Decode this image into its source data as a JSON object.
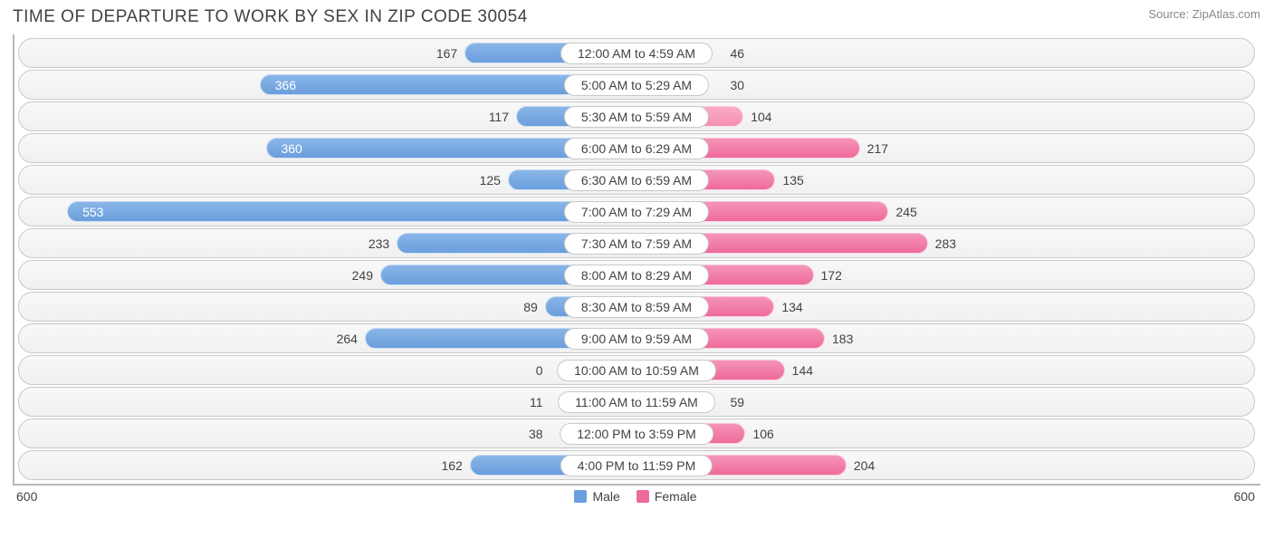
{
  "title": "TIME OF DEPARTURE TO WORK BY SEX IN ZIP CODE 30054",
  "source_label": "Source: ",
  "source_site": "ZipAtlas.com",
  "chart": {
    "type": "diverging-bar",
    "axis_max": 600,
    "axis_left_label": "600",
    "axis_right_label": "600",
    "male_color": "#6a9edc",
    "female_color": "#ee6a9c",
    "male_light": "#f58fb4",
    "track_border": "#c9c9c9",
    "background_color": "#ffffff",
    "label_fontsize": 14,
    "title_fontsize": 19,
    "inside_threshold": 320,
    "legend": {
      "male_label": "Male",
      "female_label": "Female"
    },
    "rows": [
      {
        "category": "12:00 AM to 4:59 AM",
        "male": 167,
        "female": 46,
        "female_light": true
      },
      {
        "category": "5:00 AM to 5:29 AM",
        "male": 366,
        "female": 30,
        "female_light": true
      },
      {
        "category": "5:30 AM to 5:59 AM",
        "male": 117,
        "female": 104,
        "female_light": true
      },
      {
        "category": "6:00 AM to 6:29 AM",
        "male": 360,
        "female": 217,
        "female_light": false
      },
      {
        "category": "6:30 AM to 6:59 AM",
        "male": 125,
        "female": 135,
        "female_light": false
      },
      {
        "category": "7:00 AM to 7:29 AM",
        "male": 553,
        "female": 245,
        "female_light": false
      },
      {
        "category": "7:30 AM to 7:59 AM",
        "male": 233,
        "female": 283,
        "female_light": false
      },
      {
        "category": "8:00 AM to 8:29 AM",
        "male": 249,
        "female": 172,
        "female_light": false
      },
      {
        "category": "8:30 AM to 8:59 AM",
        "male": 89,
        "female": 134,
        "female_light": false
      },
      {
        "category": "9:00 AM to 9:59 AM",
        "male": 264,
        "female": 183,
        "female_light": false
      },
      {
        "category": "10:00 AM to 10:59 AM",
        "male": 0,
        "female": 144,
        "female_light": false
      },
      {
        "category": "11:00 AM to 11:59 AM",
        "male": 11,
        "female": 59,
        "female_light": true
      },
      {
        "category": "12:00 PM to 3:59 PM",
        "male": 38,
        "female": 106,
        "female_light": false
      },
      {
        "category": "4:00 PM to 11:59 PM",
        "male": 162,
        "female": 204,
        "female_light": false
      }
    ]
  }
}
